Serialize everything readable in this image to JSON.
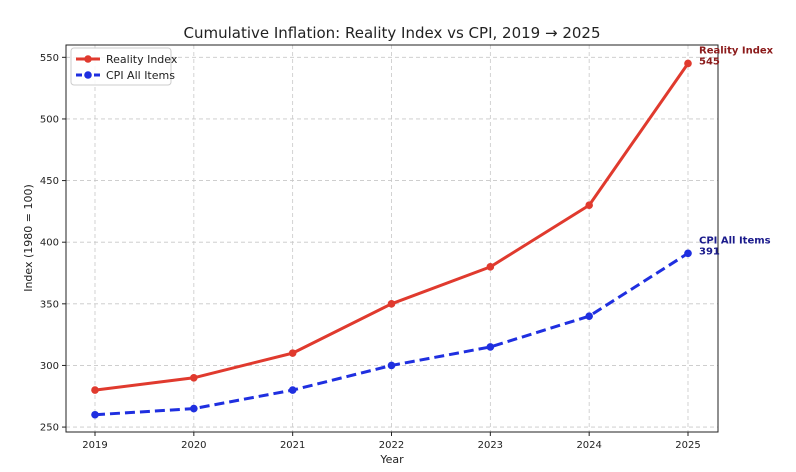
{
  "chart_data": {
    "type": "line",
    "title": "Cumulative Inflation: Reality Index vs CPI, 2019 → 2025",
    "xlabel": "Year",
    "ylabel": "Index (1980 = 100)",
    "categories": [
      "2019",
      "2020",
      "2021",
      "2022",
      "2023",
      "2024",
      "2025"
    ],
    "yticks": [
      "250",
      "300",
      "350",
      "400",
      "450",
      "500",
      "550"
    ],
    "ylim": [
      246,
      560
    ],
    "grid": true,
    "legend_position": "top-left",
    "series": [
      {
        "name": "Reality Index",
        "values": [
          280,
          290,
          310,
          350,
          380,
          430,
          545
        ],
        "color": "#e03a2e",
        "line_style": "solid",
        "end_label": "Reality Index",
        "end_value_label": "545",
        "end_label_color": "#8b1a1a"
      },
      {
        "name": "CPI All Items",
        "values": [
          260,
          265,
          280,
          300,
          315,
          340,
          391
        ],
        "color": "#1f2fe0",
        "line_style": "dashed",
        "end_label": "CPI All Items",
        "end_value_label": "391",
        "end_label_color": "#1a1a8b"
      }
    ]
  }
}
